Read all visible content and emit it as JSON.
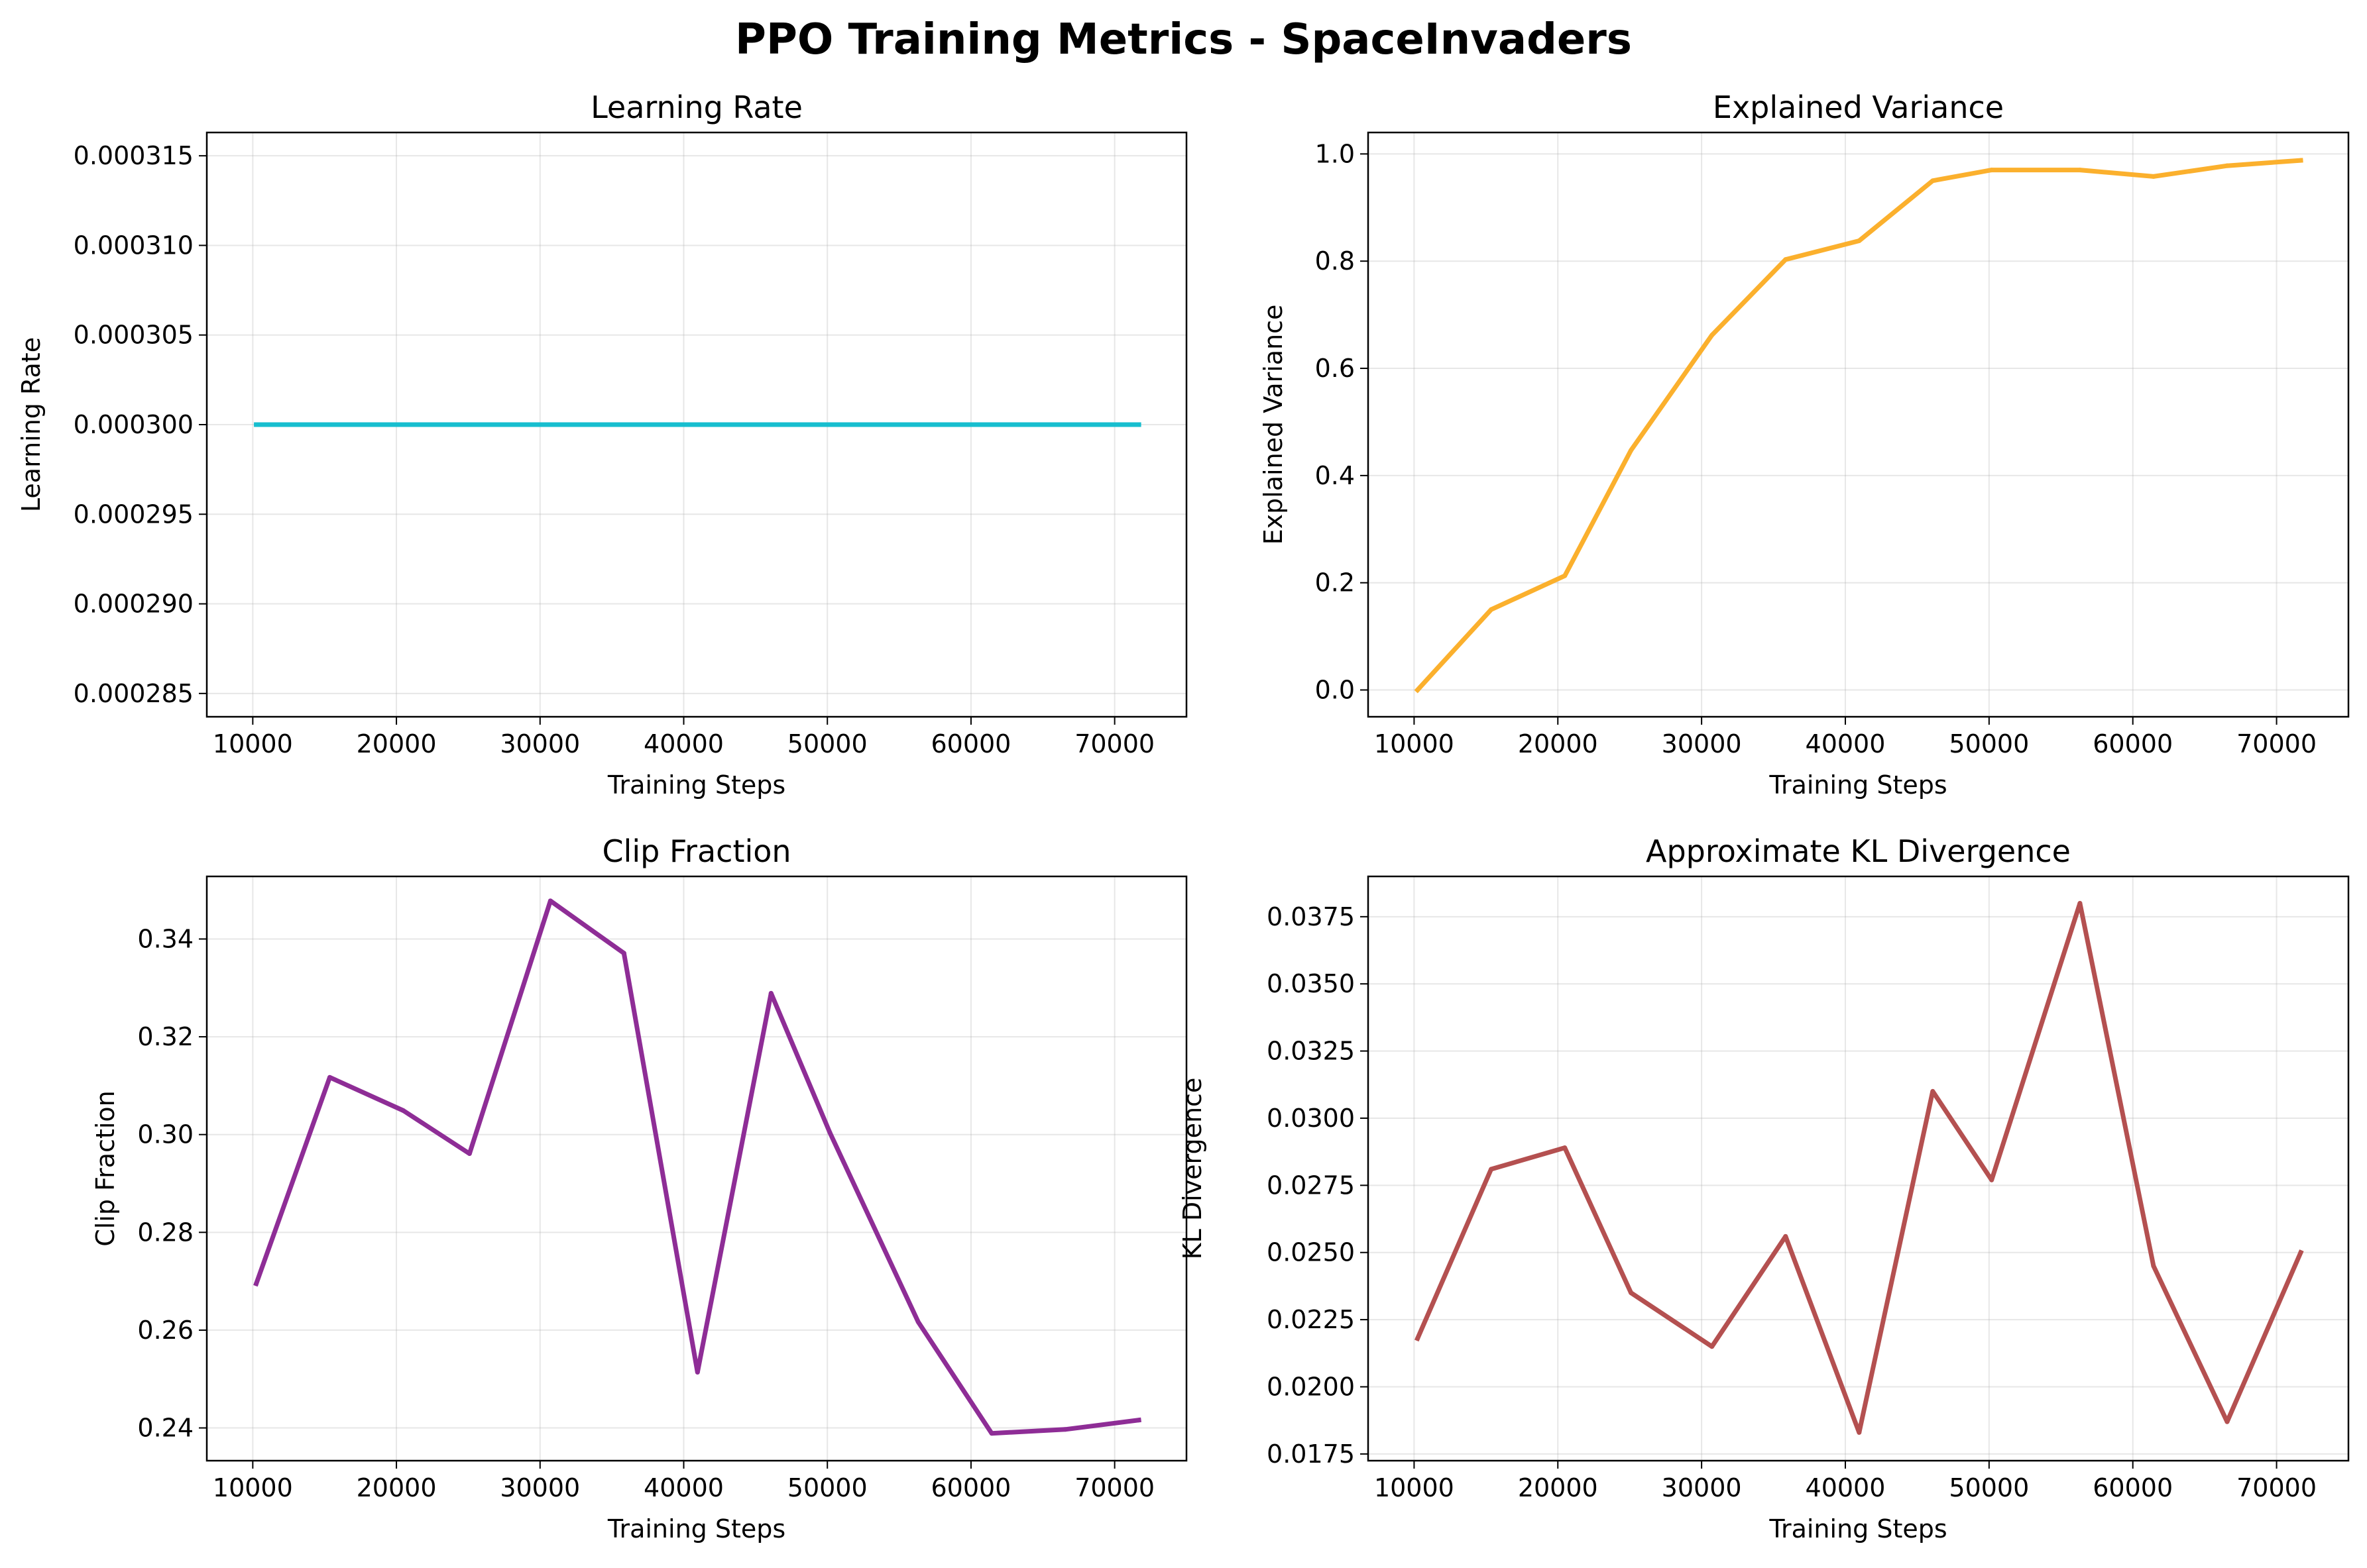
{
  "figure": {
    "title": "PPO Training Metrics - SpaceInvaders"
  },
  "chart_data": [
    {
      "type": "line",
      "title": "Learning Rate",
      "xlabel": "Training Steps",
      "ylabel": "Learning Rate",
      "color": "#17becf",
      "grid": true,
      "xlim": [
        6800,
        75000
      ],
      "ylim": [
        0.0002837,
        0.0003163
      ],
      "xticks": [
        10000,
        20000,
        30000,
        40000,
        50000,
        60000,
        70000
      ],
      "yticks": [
        0.000285,
        0.00029,
        0.000295,
        0.0003,
        0.000305,
        0.00031,
        0.000315
      ],
      "ytick_labels": [
        "0.000285",
        "0.000290",
        "0.000295",
        "0.000300",
        "0.000305",
        "0.000310",
        "0.000315"
      ],
      "x": [
        10240,
        15360,
        20480,
        25088,
        30720,
        35840,
        40960,
        46080,
        50176,
        56320,
        61440,
        66560,
        71680
      ],
      "y": [
        0.0003,
        0.0003,
        0.0003,
        0.0003,
        0.0003,
        0.0003,
        0.0003,
        0.0003,
        0.0003,
        0.0003,
        0.0003,
        0.0003,
        0.0003
      ]
    },
    {
      "type": "line",
      "title": "Explained Variance",
      "xlabel": "Training Steps",
      "ylabel": "Explained Variance",
      "color": "#fbb02d",
      "grid": true,
      "xlim": [
        6800,
        75000
      ],
      "ylim": [
        -0.05,
        1.04
      ],
      "xticks": [
        10000,
        20000,
        30000,
        40000,
        50000,
        60000,
        70000
      ],
      "yticks": [
        0.0,
        0.2,
        0.4,
        0.6,
        0.8,
        1.0
      ],
      "ytick_labels": [
        "0.0",
        "0.2",
        "0.4",
        "0.6",
        "0.8",
        "1.0"
      ],
      "x": [
        10240,
        15360,
        20480,
        25088,
        30720,
        35840,
        40960,
        46080,
        50176,
        56320,
        61440,
        66560,
        71680
      ],
      "y": [
        0.0,
        0.15,
        0.213,
        0.447,
        0.662,
        0.803,
        0.838,
        0.95,
        0.97,
        0.97,
        0.958,
        0.978,
        0.988
      ]
    },
    {
      "type": "line",
      "title": "Clip Fraction",
      "xlabel": "Training Steps",
      "ylabel": "Clip Fraction",
      "color": "#8e2d96",
      "grid": true,
      "xlim": [
        6800,
        75000
      ],
      "ylim": [
        0.2333,
        0.3528
      ],
      "xticks": [
        10000,
        20000,
        30000,
        40000,
        50000,
        60000,
        70000
      ],
      "yticks": [
        0.24,
        0.26,
        0.28,
        0.3,
        0.32,
        0.34
      ],
      "ytick_labels": [
        "0.24",
        "0.26",
        "0.28",
        "0.30",
        "0.32",
        "0.34"
      ],
      "x": [
        10240,
        15360,
        20480,
        25088,
        30720,
        35840,
        40960,
        46080,
        50176,
        56320,
        61440,
        66560,
        71680
      ],
      "y": [
        0.2695,
        0.3117,
        0.3049,
        0.2961,
        0.3478,
        0.3371,
        0.2514,
        0.3289,
        0.3004,
        0.2617,
        0.2389,
        0.2397,
        0.2416
      ]
    },
    {
      "type": "line",
      "title": "Approximate KL Divergence",
      "xlabel": "Training Steps",
      "ylabel": "KL Divergence",
      "color": "#b45050",
      "grid": true,
      "xlim": [
        6800,
        75000
      ],
      "ylim": [
        0.01725,
        0.039
      ],
      "xticks": [
        10000,
        20000,
        30000,
        40000,
        50000,
        60000,
        70000
      ],
      "yticks": [
        0.0175,
        0.02,
        0.0225,
        0.025,
        0.0275,
        0.03,
        0.0325,
        0.035,
        0.0375
      ],
      "ytick_labels": [
        "0.0175",
        "0.0200",
        "0.0225",
        "0.0250",
        "0.0275",
        "0.0300",
        "0.0325",
        "0.0350",
        "0.0375"
      ],
      "x": [
        10240,
        15360,
        20480,
        25088,
        30720,
        35840,
        40960,
        46080,
        50176,
        56320,
        61440,
        66560,
        71680
      ],
      "y": [
        0.0218,
        0.0281,
        0.0289,
        0.0235,
        0.0215,
        0.0256,
        0.0183,
        0.031,
        0.0277,
        0.038,
        0.0245,
        0.0187,
        0.025
      ]
    }
  ]
}
